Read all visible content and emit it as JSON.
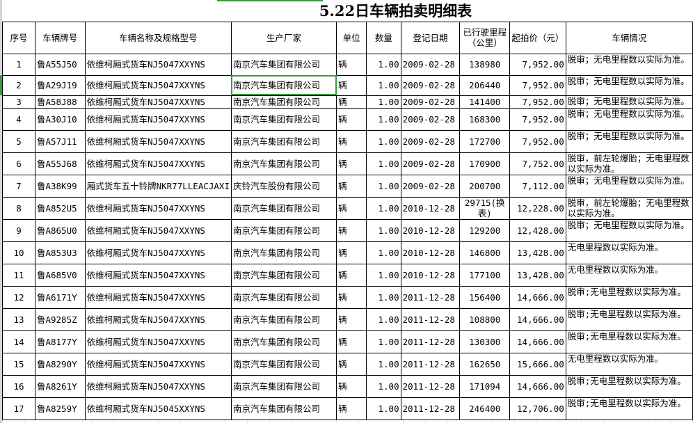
{
  "title": "5.22日车辆拍卖明细表",
  "headers": [
    "序号",
    "车辆牌号",
    "车辆名称及规格型号",
    "生产厂家",
    "单位",
    "数量",
    "登记日期",
    "已行驶里程（公里）",
    "起拍价（元）",
    "车辆情况"
  ],
  "selected_cell": {
    "row": 2,
    "column": "生产厂家"
  },
  "accent_color": "#3c9a3c",
  "rows": [
    [
      "1",
      "鲁A55J50",
      "依维柯厢式货车NJ5047XXYNS",
      "南京汽车集团有限公司",
      "辆",
      "1.00",
      "2009-02-28",
      "138980",
      "7,952.00",
      "脱审；无电里程数以实际为准。"
    ],
    [
      "2",
      "鲁A29J19",
      "依维柯厢式货车NJ5047XXYNS",
      "南京汽车集团有限公司",
      "辆",
      "1.00",
      "2009-02-28",
      "206440",
      "7,952.00",
      "脱审；无电里程数以实际为准。"
    ],
    [
      "3",
      "鲁A58J88",
      "依维柯厢式货车NJ5047XXYNS",
      "南京汽车集团有限公司",
      "辆",
      "1.00",
      "2009-02-28",
      "141400",
      "7,952.00",
      "脱审；无电里程数以实际为准。"
    ],
    [
      "4",
      "鲁A30J10",
      "依维柯厢式货车NJ5047XXYNS",
      "南京汽车集团有限公司",
      "辆",
      "1.00",
      "2009-02-28",
      "168300",
      "7,952.00",
      "脱审；无电里程数以实际为准。"
    ],
    [
      "5",
      "鲁A57J11",
      "依维柯厢式货车NJ5047XXYNS",
      "南京汽车集团有限公司",
      "辆",
      "1.00",
      "2009-02-28",
      "172700",
      "7,952.00",
      "脱审；无电里程数以实际为准。"
    ],
    [
      "6",
      "鲁A55J68",
      "依维柯厢式货车NJ5047XXYNS",
      "南京汽车集团有限公司",
      "辆",
      "1.00",
      "2009-02-28",
      "170900",
      "7,752.00",
      "脱审，前左轮爆胎；无电里程数以实际为准。"
    ],
    [
      "7",
      "鲁A38K99",
      "厢式货车五十铃牌NKR77LLEACJAXI",
      "庆铃汽车股份有限公司",
      "辆",
      "1.00",
      "2009-02-28",
      "200700",
      "7,112.00",
      "脱审；无电里程数以实际为准。"
    ],
    [
      "8",
      "鲁A852U5",
      "依维柯厢式货车NJ5047XXYNS",
      "南京汽车集团有限公司",
      "辆",
      "1.00",
      "2010-12-28",
      "29715(换表)",
      "12,228.00",
      "脱审，前左轮爆胎；无电里程数以实际为准。"
    ],
    [
      "9",
      "鲁A865U0",
      "依维柯厢式货车NJ5047XXYNS",
      "南京汽车集团有限公司",
      "辆",
      "1.00",
      "2010-12-28",
      "129200",
      "12,428.00",
      "脱审；无电里程数以实际为准。"
    ],
    [
      "10",
      "鲁A853U3",
      "依维柯厢式货车NJ5047XXYNS",
      "南京汽车集团有限公司",
      "辆",
      "1.00",
      "2010-12-28",
      "146800",
      "13,428.00",
      "无电里程数以实际为准。"
    ],
    [
      "11",
      "鲁A685V0",
      "依维柯厢式货车NJ5047XXYNS",
      "南京汽车集团有限公司",
      "辆",
      "1.00",
      "2010-12-28",
      "177100",
      "13,428.00",
      "无电里程数以实际为准。"
    ],
    [
      "12",
      "鲁A6171Y",
      "依维柯厢式货车NJ5047XXYNS",
      "南京汽车集团有限公司",
      "辆",
      "1.00",
      "2011-12-28",
      "156400",
      "14,666.00",
      "脱审;无电里程数以实际为准。"
    ],
    [
      "13",
      "鲁A9285Z",
      "依维柯厢式货车NJ5047XXYNS",
      "南京汽车集团有限公司",
      "辆",
      "1.00",
      "2011-12-28",
      "108800",
      "14,666.00",
      "脱审;无电里程数以实际为准。"
    ],
    [
      "14",
      "鲁A8177Y",
      "依维柯厢式货车NJ5047XXYNS",
      "南京汽车集团有限公司",
      "辆",
      "1.00",
      "2011-12-28",
      "130300",
      "14,666.00",
      "脱审;无电里程数以实际为准。"
    ],
    [
      "15",
      "鲁A8290Y",
      "依维柯厢式货车NJ5047XXYNS",
      "南京汽车集团有限公司",
      "辆",
      "1.00",
      "2011-12-28",
      "162650",
      "15,666.00",
      "无电里程数以实际为准。"
    ],
    [
      "16",
      "鲁A8261Y",
      "依维柯厢式货车NJ5047XXYNS",
      "南京汽车集团有限公司",
      "辆",
      "1.00",
      "2011-12-28",
      "171094",
      "14,666.00",
      "脱审;无电里程数以实际为准。"
    ],
    [
      "17",
      "鲁A8259Y",
      "依维柯厢式货车NJ5045XXYNS",
      "南京汽车集团有限公司",
      "辆",
      "1.00",
      "2011-12-28",
      "246400",
      "12,706.00",
      "脱审;无电里程数以实际为准。"
    ]
  ]
}
